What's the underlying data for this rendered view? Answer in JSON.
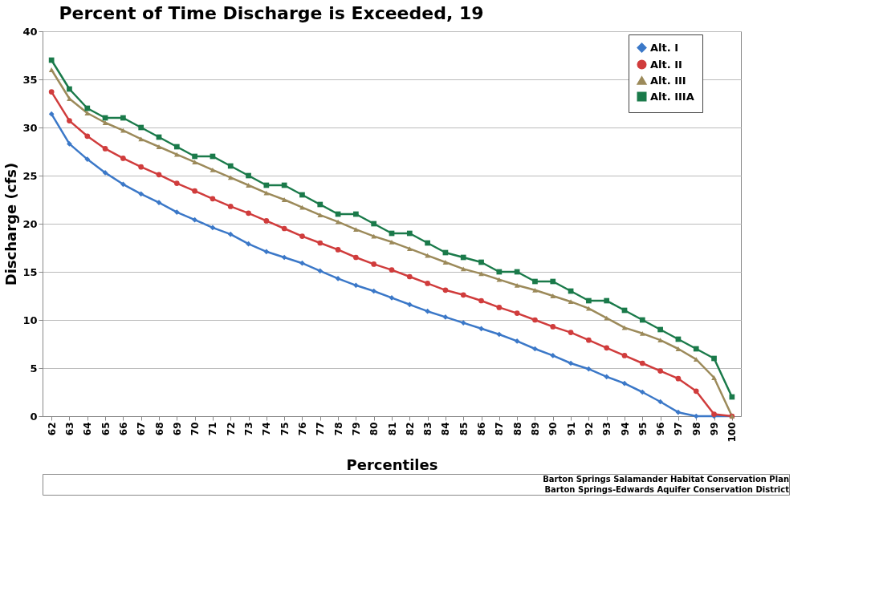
{
  "chart_data": {
    "type": "line",
    "title": "Percent of Time Discharge is Exceeded, 19",
    "xlabel": "Percentiles",
    "ylabel": "Discharge (cfs)",
    "categories": [
      "62",
      "63",
      "64",
      "65",
      "66",
      "67",
      "68",
      "69",
      "70",
      "71",
      "72",
      "73",
      "74",
      "75",
      "76",
      "77",
      "78",
      "79",
      "80",
      "81",
      "82",
      "83",
      "84",
      "85",
      "86",
      "87",
      "88",
      "89",
      "90",
      "91",
      "92",
      "93",
      "94",
      "95",
      "96",
      "97",
      "98",
      "99",
      "100"
    ],
    "series": [
      {
        "name": "Alt. I",
        "color": "#3b78c8",
        "marker": "diamond",
        "values": [
          31.4,
          28.3,
          26.7,
          25.3,
          24.1,
          23.1,
          22.2,
          21.2,
          20.4,
          19.6,
          18.9,
          17.9,
          17.1,
          16.5,
          15.9,
          15.1,
          14.3,
          13.6,
          13,
          12.3,
          11.6,
          10.9,
          10.3,
          9.7,
          9.1,
          8.5,
          7.8,
          7,
          6.3,
          5.5,
          4.9,
          4.1,
          3.4,
          2.5,
          1.5,
          0.4,
          0,
          0,
          0
        ]
      },
      {
        "name": "Alt. II",
        "color": "#d03c3c",
        "marker": "circle",
        "values": [
          33.7,
          30.7,
          29.1,
          27.8,
          26.8,
          25.9,
          25.1,
          24.2,
          23.4,
          22.6,
          21.8,
          21.1,
          20.3,
          19.5,
          18.7,
          18,
          17.3,
          16.5,
          15.8,
          15.2,
          14.5,
          13.8,
          13.1,
          12.6,
          12,
          11.3,
          10.7,
          10,
          9.3,
          8.7,
          7.9,
          7.1,
          6.3,
          5.5,
          4.7,
          3.9,
          2.6,
          0.2,
          0
        ]
      },
      {
        "name": "Alt. III",
        "color": "#9c8a5a",
        "marker": "triangle",
        "values": [
          36,
          33,
          31.5,
          30.5,
          29.7,
          28.8,
          28,
          27.2,
          26.4,
          25.6,
          24.8,
          24,
          23.2,
          22.5,
          21.7,
          20.9,
          20.2,
          19.4,
          18.7,
          18.1,
          17.4,
          16.7,
          16,
          15.3,
          14.8,
          14.2,
          13.6,
          13.1,
          12.5,
          11.9,
          11.2,
          10.2,
          9.2,
          8.6,
          7.9,
          7,
          5.9,
          4,
          0
        ]
      },
      {
        "name": "Alt. IIIA",
        "color": "#1a7a4a",
        "marker": "square",
        "values": [
          37,
          34,
          32,
          31,
          31,
          30,
          29,
          28,
          27,
          27,
          26,
          25,
          24,
          24,
          23,
          22,
          21,
          21,
          20,
          19,
          19,
          18,
          17,
          16.5,
          16,
          15,
          15,
          14,
          14,
          13,
          12,
          12,
          11,
          10,
          9,
          8,
          7,
          6,
          2
        ]
      }
    ],
    "ylim": [
      0,
      40
    ],
    "yticks": [
      0,
      5,
      10,
      15,
      20,
      25,
      30,
      35,
      40
    ],
    "grid": "y",
    "legend": "top right",
    "line_style": "solid",
    "annotations": [
      "Barton Springs Salamander Habitat Conservation Plan",
      "Barton Springs-Edwards Aquifer Conservation District"
    ]
  }
}
